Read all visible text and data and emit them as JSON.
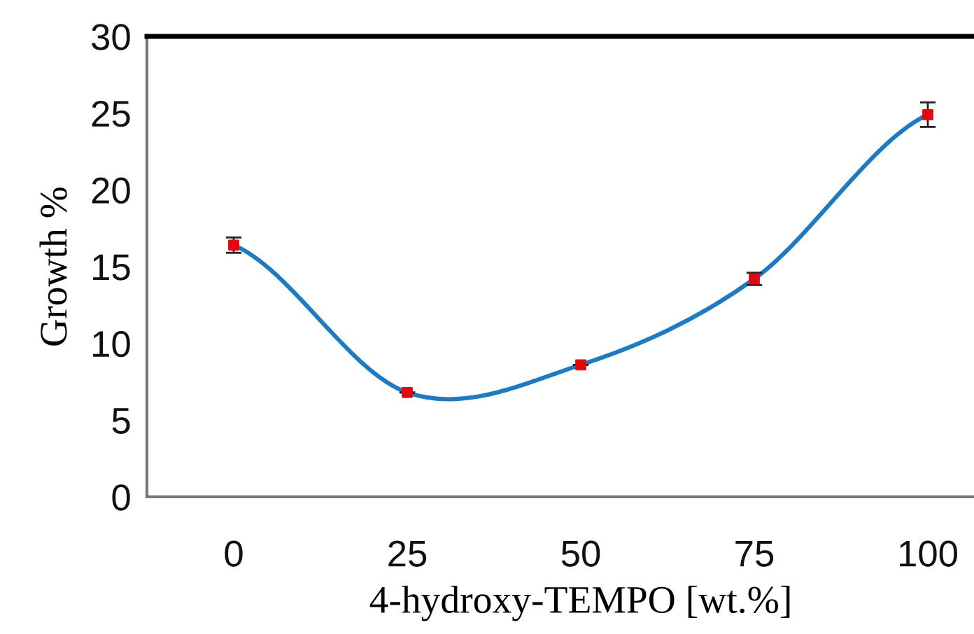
{
  "chart_data": {
    "type": "line",
    "xlabel": "4-hydroxy-TEMPO [wt.%]",
    "ylabel": "Growth %",
    "categories": [
      "0",
      "25",
      "50",
      "75",
      "100"
    ],
    "series": [
      {
        "type": "line",
        "color": "#1f7bc1",
        "marker": "none",
        "values": [
          16.4,
          6.8,
          8.6,
          14.2,
          24.9
        ]
      },
      {
        "type": "scatter",
        "color": "#e30613",
        "marker": "square",
        "values": [
          16.4,
          6.8,
          8.6,
          14.2,
          24.9
        ],
        "errors": [
          0.5,
          null,
          null,
          0.4,
          0.8
        ]
      }
    ],
    "ylim": [
      0,
      30
    ],
    "yticks": [
      0,
      5,
      10,
      15,
      20,
      25,
      30
    ],
    "grid": false
  }
}
